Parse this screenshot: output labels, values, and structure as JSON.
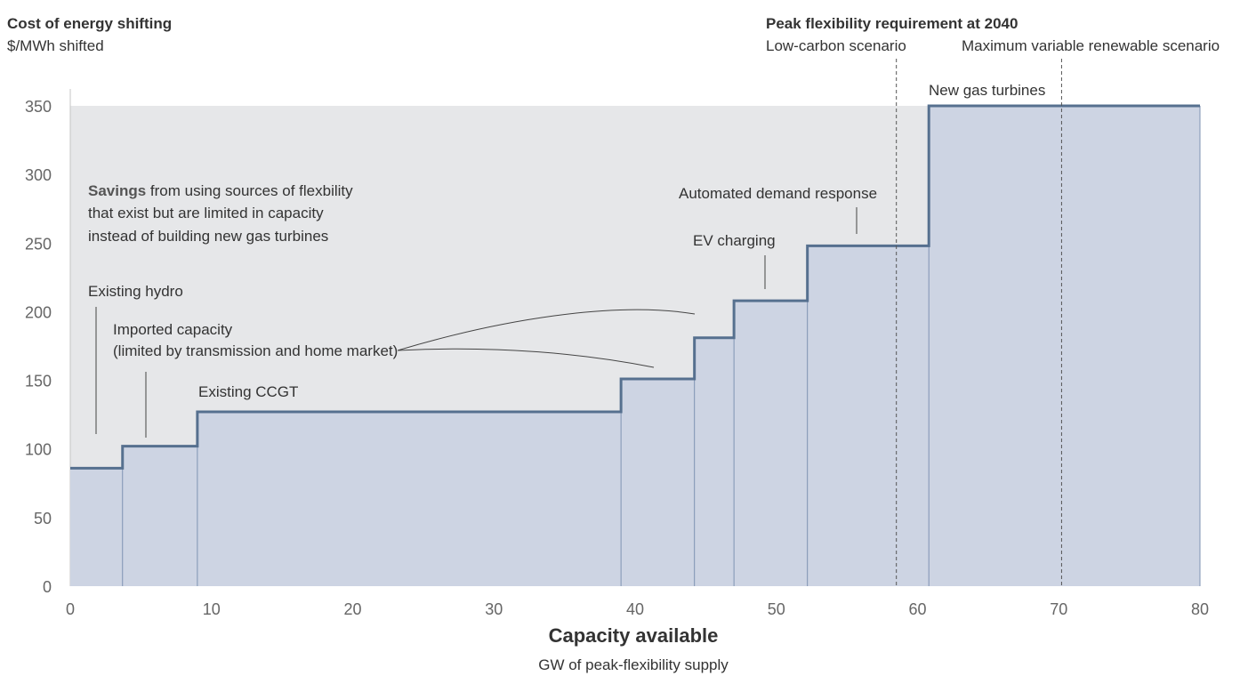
{
  "chart_data": {
    "type": "step-area",
    "title": "Cost of energy shifting",
    "ylabel": "$/MWh shifted",
    "xlabel": "Capacity available",
    "xsublabel": "GW of peak-flexibility supply",
    "xlim": [
      0,
      80
    ],
    "ylim": [
      0,
      350
    ],
    "xticks": [
      0,
      10,
      20,
      30,
      40,
      50,
      60,
      70,
      80
    ],
    "yticks": [
      0,
      50,
      100,
      150,
      200,
      250,
      300,
      350
    ],
    "ceiling": 350,
    "steps": [
      {
        "x0": 0,
        "x1": 3.7,
        "y": 86
      },
      {
        "x0": 3.7,
        "x1": 9.0,
        "y": 102
      },
      {
        "x0": 9.0,
        "x1": 39.0,
        "y": 127
      },
      {
        "x0": 39.0,
        "x1": 44.2,
        "y": 151
      },
      {
        "x0": 44.2,
        "x1": 47.0,
        "y": 181
      },
      {
        "x0": 47.0,
        "x1": 52.2,
        "y": 208
      },
      {
        "x0": 52.2,
        "x1": 60.8,
        "y": 248
      },
      {
        "x0": 60.8,
        "x1": 80.0,
        "y": 350
      }
    ],
    "colors": {
      "fill": "#cdd4e3",
      "line": "#56708f",
      "savings": "#e6e7e9",
      "divider": "#7f93b3"
    },
    "peak_header": "Peak flexibility requirement at 2040",
    "scenarios": [
      {
        "label": "Low-carbon scenario",
        "x": 58.5
      },
      {
        "label": "Maximum variable renewable scenario",
        "x": 70.2
      }
    ],
    "savings_note": {
      "bold": "Savings",
      "line1_rest": " from using sources of flexbility",
      "line2": "that exist but are limited in capacity",
      "line3": "instead of building new gas turbines"
    },
    "annotations": {
      "hydro": "Existing hydro",
      "imported_1": "Imported capacity",
      "imported_2": "(limited by transmission and home market)",
      "ccgt": "Existing CCGT",
      "ev": "EV charging",
      "adr": "Automated demand response",
      "gas": "New gas turbines"
    }
  }
}
